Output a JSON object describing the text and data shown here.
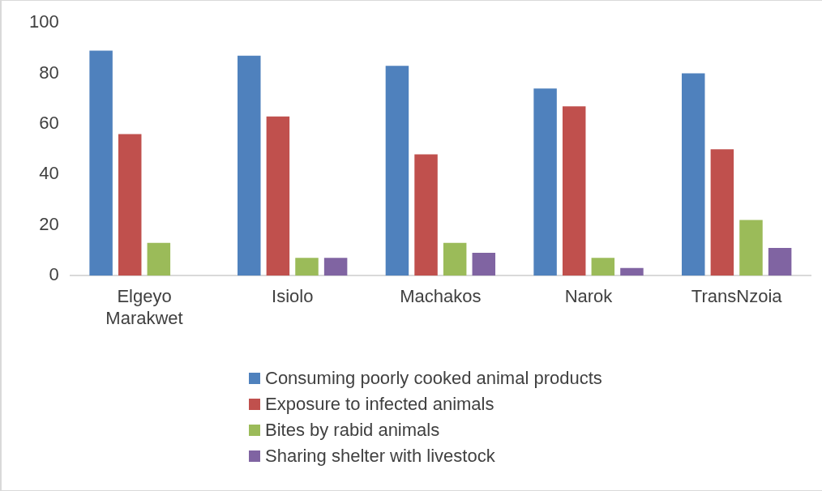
{
  "chart_data": {
    "type": "bar",
    "categories": [
      "Elgeyo Marakwet",
      "Isiolo",
      "Machakos",
      "Narok",
      "TransNzoia"
    ],
    "series": [
      {
        "name": "Consuming poorly cooked animal products",
        "color": "#4f81bd",
        "values": [
          89,
          87,
          83,
          74,
          80
        ]
      },
      {
        "name": "Exposure to infected animals",
        "color": "#c0504d",
        "values": [
          56,
          63,
          48,
          67,
          50
        ]
      },
      {
        "name": "Bites by rabid animals",
        "color": "#9bbb59",
        "values": [
          13,
          7,
          13,
          7,
          22
        ]
      },
      {
        "name": "Sharing shelter with livestock",
        "color": "#8064a2",
        "values": [
          0,
          7,
          9,
          3,
          11
        ]
      }
    ],
    "ylim": [
      0,
      100
    ],
    "yticks": [
      0,
      20,
      40,
      60,
      80,
      100
    ],
    "grid": false,
    "legend": "bottom"
  }
}
